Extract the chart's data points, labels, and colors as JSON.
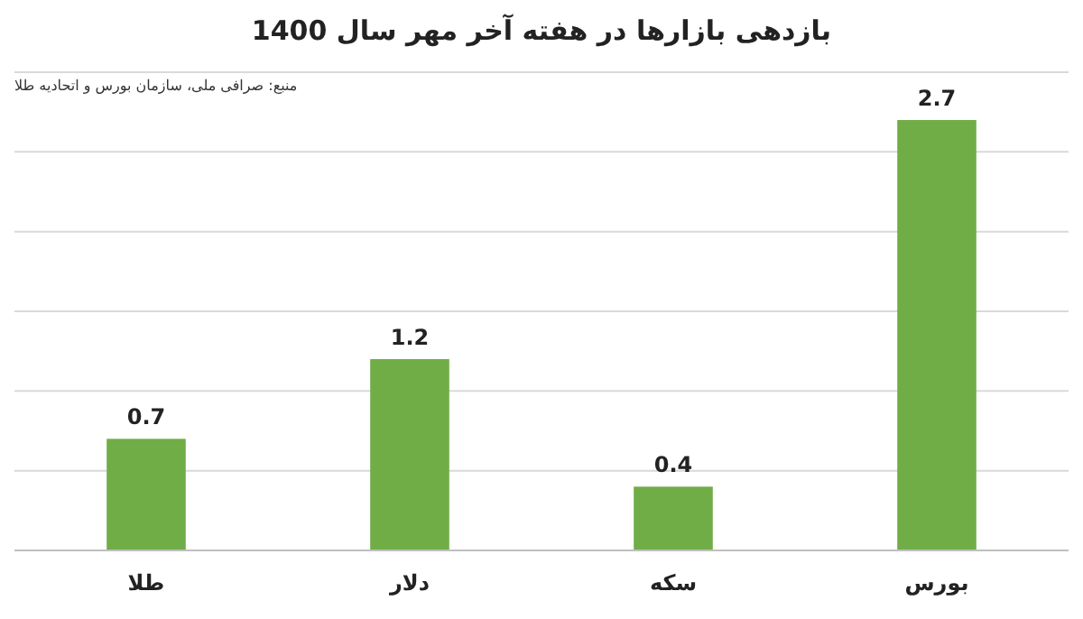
{
  "chart_data": {
    "type": "bar",
    "title": "بازدهی بازارها در هفته آخر مهر سال 1400",
    "annotations": [
      "منبع: صرافی ملی، سازمان بورس و اتحادیه طلا"
    ],
    "categories": [
      "طلا",
      "دلار",
      "سکه",
      "بورس"
    ],
    "values": [
      0.7,
      1.2,
      0.4,
      2.7
    ],
    "color": "#70ad47",
    "ylim": [
      0,
      3
    ],
    "yticks": [
      {
        "value": 0,
        "label": null
      },
      {
        "value": 0.5,
        "label": null
      },
      {
        "value": 1,
        "label": null
      },
      {
        "value": 1.5,
        "label": null
      },
      {
        "value": 2,
        "label": null
      },
      {
        "value": 2.5,
        "label": null
      },
      {
        "value": 3,
        "label": null
      }
    ],
    "grid": "y",
    "data_labels": true,
    "tick_labels": "x"
  }
}
